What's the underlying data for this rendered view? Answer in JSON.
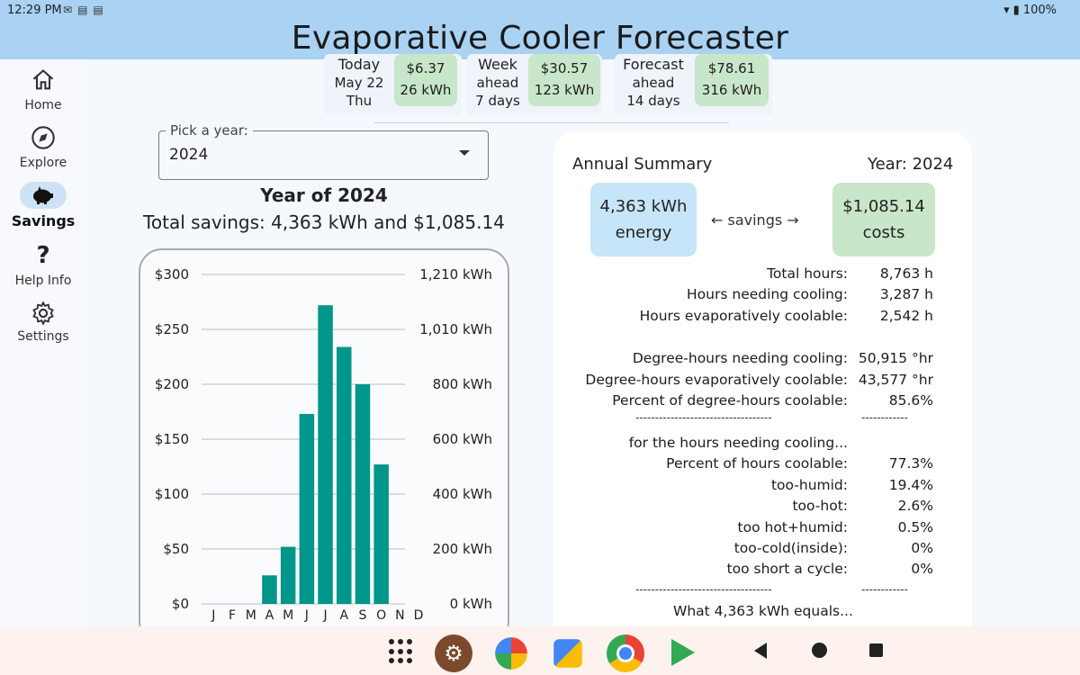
{
  "status": {
    "time": "12:29 PM",
    "battery": "100%"
  },
  "app": {
    "title": "Evaporative Cooler Forecaster"
  },
  "nav": [
    {
      "label": "Home",
      "icon": "home-icon"
    },
    {
      "label": "Explore",
      "icon": "compass-icon"
    },
    {
      "label": "Savings",
      "icon": "piggy-bank-icon",
      "active": true
    },
    {
      "label": "Help Info",
      "icon": "question-icon"
    },
    {
      "label": "Settings",
      "icon": "gear-icon"
    }
  ],
  "chips": {
    "today": {
      "line1": "Today",
      "line2": "May 22",
      "line3": "Thu",
      "money": "$6.37",
      "energy": "26 kWh"
    },
    "week": {
      "line1": "Week",
      "line2": "ahead",
      "line3": "7 days",
      "money": "$30.57",
      "energy": "123 kWh"
    },
    "forecast": {
      "line1": "Forecast",
      "line2": "ahead",
      "line3": "14 days",
      "money": "$78.61",
      "energy": "316 kWh"
    }
  },
  "picker": {
    "label": "Pick a year:",
    "value": "2024"
  },
  "year_heading": {
    "title": "Year of 2024",
    "total": "Total savings: 4,363 kWh and $1,085.14"
  },
  "chart_data": {
    "type": "bar",
    "categories": [
      "J",
      "F",
      "M",
      "A",
      "M",
      "J",
      "J",
      "A",
      "S",
      "O",
      "N",
      "D"
    ],
    "values": [
      0,
      0,
      0,
      26,
      52,
      173,
      272,
      234,
      200,
      127,
      0,
      0
    ],
    "ylim": [
      0,
      300
    ],
    "left_ticks": [
      "$0",
      "$50",
      "$100",
      "$150",
      "$200",
      "$250",
      "$300"
    ],
    "right_ticks": [
      "0 kWh",
      "200 kWh",
      "400 kWh",
      "600 kWh",
      "800 kWh",
      "1,010 kWh",
      "1,210 kWh"
    ],
    "grid": true,
    "bar_color": "#00968a"
  },
  "summary": {
    "title": "Annual Summary",
    "year": "Year: 2024",
    "energy_value": "4,363 kWh",
    "energy_label": "energy",
    "arrow": "← savings →",
    "cost_value": "$1,085.14",
    "cost_label": "costs",
    "rows": [
      {
        "label": "Total hours:",
        "value": "8,763 h"
      },
      {
        "label": "Hours needing cooling:",
        "value": "3,287 h"
      },
      {
        "label": "Hours evaporatively coolable:",
        "value": "2,542 h"
      },
      {
        "label": "Degree-hours needing cooling:",
        "value": "50,915 °hr"
      },
      {
        "label": "Degree-hours evaporatively coolable:",
        "value": "43,577 °hr"
      },
      {
        "label": "Percent of degree-hours coolable:",
        "value": "85.6%"
      },
      {
        "label": "for the hours needing cooling...",
        "value": ""
      },
      {
        "label": "Percent of hours coolable:",
        "value": "77.3%"
      },
      {
        "label": "too-humid:",
        "value": "19.4%"
      },
      {
        "label": "too-hot:",
        "value": "2.6%"
      },
      {
        "label": "too hot+humid:",
        "value": "0.5%"
      },
      {
        "label": "too-cold(inside):",
        "value": "0%"
      },
      {
        "label": "too short a cycle:",
        "value": "0%"
      }
    ],
    "dashes_left": "-----------------------------------",
    "dashes_right": "------------",
    "footer": "What 4,363 kWh equals..."
  },
  "dock": [
    "app-drawer-icon",
    "settings-app-icon",
    "photos-app-icon",
    "files-app-icon",
    "chrome-app-icon",
    "play-store-icon"
  ],
  "system_nav": [
    "back-icon",
    "home-circle-icon",
    "recents-icon"
  ],
  "colors": {
    "appbar": "#a9d2f3",
    "energy_chip": "#c6e5f8",
    "money_chip": "#c8e6c9",
    "bar": "#00968a"
  }
}
